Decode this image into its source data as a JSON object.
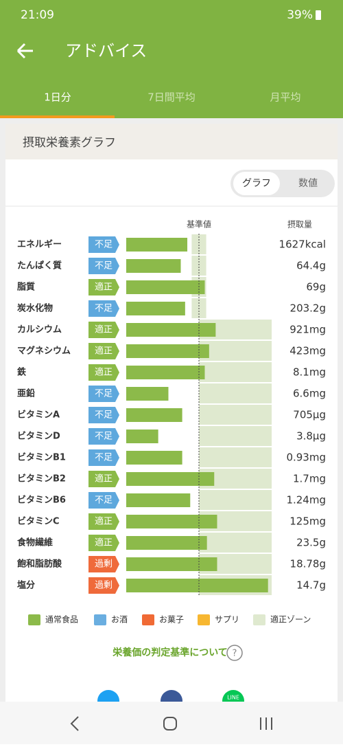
{
  "status_bar": {
    "time": "21:09",
    "battery": "39%"
  },
  "header": {
    "title": "アドバイス"
  },
  "tabs": [
    "1日分",
    "7日間平均",
    "月平均"
  ],
  "card": {
    "title": "摂取栄養素グラフ",
    "toggle": [
      "グラフ",
      "数値"
    ],
    "columns": {
      "reference": "基準値",
      "intake": "摂取量"
    },
    "reference": 100,
    "rows": [
      {
        "name": "エネルギー",
        "status": "不足",
        "status_color": "#5ea8dd",
        "amount": "1627kcal",
        "percent": 84,
        "zone": [
          90,
          110
        ]
      },
      {
        "name": "たんぱく質",
        "status": "不足",
        "status_color": "#5ea8dd",
        "amount": "64.4g",
        "percent": 75,
        "zone": [
          90,
          110
        ]
      },
      {
        "name": "脂質",
        "status": "適正",
        "status_color": "#8bba47",
        "amount": "69g",
        "percent": 108,
        "zone": [
          90,
          110
        ]
      },
      {
        "name": "炭水化物",
        "status": "不足",
        "status_color": "#5ea8dd",
        "amount": "203.2g",
        "percent": 81,
        "zone": [
          90,
          110
        ]
      },
      {
        "name": "カルシウム",
        "status": "適正",
        "status_color": "#8bba47",
        "amount": "921mg",
        "percent": 123,
        "zone": [
          100,
          200
        ]
      },
      {
        "name": "マグネシウム",
        "status": "適正",
        "status_color": "#8bba47",
        "amount": "423mg",
        "percent": 114,
        "zone": [
          100,
          200
        ]
      },
      {
        "name": "鉄",
        "status": "適正",
        "status_color": "#8bba47",
        "amount": "8.1mg",
        "percent": 108,
        "zone": [
          100,
          200
        ]
      },
      {
        "name": "亜鉛",
        "status": "不足",
        "status_color": "#5ea8dd",
        "amount": "6.6mg",
        "percent": 58,
        "zone": [
          100,
          200
        ]
      },
      {
        "name": "ビタミンA",
        "status": "不足",
        "status_color": "#5ea8dd",
        "amount": "705μg",
        "percent": 77,
        "zone": [
          100,
          200
        ]
      },
      {
        "name": "ビタミンD",
        "status": "不足",
        "status_color": "#5ea8dd",
        "amount": "3.8μg",
        "percent": 44,
        "zone": [
          100,
          200
        ]
      },
      {
        "name": "ビタミンB1",
        "status": "不足",
        "status_color": "#5ea8dd",
        "amount": "0.93mg",
        "percent": 77,
        "zone": [
          100,
          200
        ]
      },
      {
        "name": "ビタミンB2",
        "status": "適正",
        "status_color": "#8bba47",
        "amount": "1.7mg",
        "percent": 121,
        "zone": [
          100,
          200
        ]
      },
      {
        "name": "ビタミンB6",
        "status": "不足",
        "status_color": "#5ea8dd",
        "amount": "1.24mg",
        "percent": 88,
        "zone": [
          100,
          200
        ]
      },
      {
        "name": "ビタミンC",
        "status": "適正",
        "status_color": "#8bba47",
        "amount": "125mg",
        "percent": 125,
        "zone": [
          100,
          200
        ]
      },
      {
        "name": "食物繊維",
        "status": "適正",
        "status_color": "#8bba47",
        "amount": "23.5g",
        "percent": 111,
        "zone": [
          100,
          200
        ]
      },
      {
        "name": "飽和脂肪酸",
        "status": "過剰",
        "status_color": "#ef6a3b",
        "amount": "18.78g",
        "percent": 125,
        "zone": [
          100,
          200
        ]
      },
      {
        "name": "塩分",
        "status": "過剰",
        "status_color": "#ef6a3b",
        "amount": "14.7g",
        "percent": 195,
        "zone": [
          100,
          200
        ]
      }
    ],
    "bar_color": "#8cba4a",
    "zone_color": "#dfe9cf",
    "legend": [
      {
        "label": "通常食品",
        "color": "#8cba4a"
      },
      {
        "label": "お酒",
        "color": "#6aaee0"
      },
      {
        "label": "お菓子",
        "color": "#f06a35"
      },
      {
        "label": "サプリ",
        "color": "#f7b731"
      },
      {
        "label": "適正ゾーン",
        "color": "#dfe9cf"
      }
    ],
    "link": "栄養価の判定基準について",
    "help_icon": "?",
    "share": [
      "LINE"
    ]
  }
}
